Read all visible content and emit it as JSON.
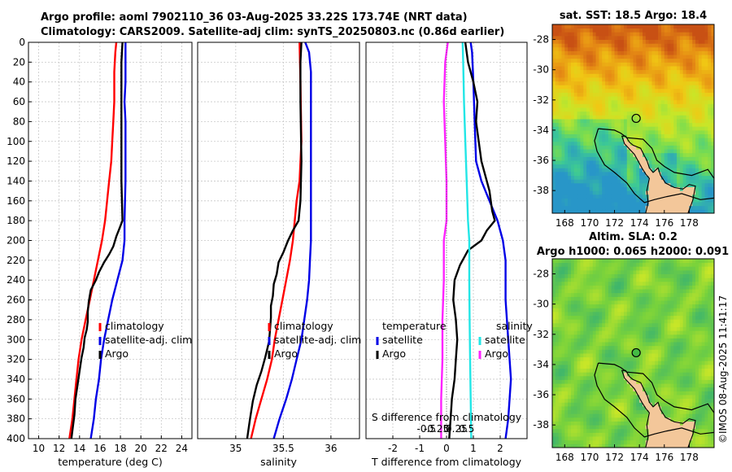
{
  "header": {
    "line1": "Argo profile: aoml 7902110_36 03-Aug-2025 33.22S 173.74E (NRT data)",
    "line2": "Climatology: CARS2009. Satellite-adj clim: synTS_20250803.nc (0.86d earlier)"
  },
  "watermark": "©IMOS 08-Aug-2025 11:41:17",
  "colors": {
    "red": "#ff0000",
    "blue": "#0000e6",
    "black": "#000000",
    "cyan": "#22e6e6",
    "magenta": "#ff22ff",
    "land": "#f3c79a",
    "coast": "#000000"
  },
  "chart_data": [
    {
      "type": "line",
      "id": "temperature",
      "xlabel": "temperature (deg C)",
      "ylabel": "",
      "xlim": [
        9,
        25
      ],
      "ylim": [
        400,
        0
      ],
      "xticks": [
        10,
        12,
        14,
        16,
        18,
        20,
        22,
        24
      ],
      "yticks": [
        0,
        20,
        40,
        60,
        80,
        100,
        120,
        140,
        160,
        180,
        200,
        220,
        240,
        260,
        280,
        300,
        320,
        340,
        360,
        380,
        400
      ],
      "legend": [
        "climatology",
        "satellite-adj. clim",
        "Argo"
      ],
      "series": [
        {
          "name": "climatology",
          "color": "red",
          "points": [
            [
              17.6,
              0
            ],
            [
              17.5,
              10
            ],
            [
              17.4,
              30
            ],
            [
              17.4,
              60
            ],
            [
              17.3,
              80
            ],
            [
              17.2,
              100
            ],
            [
              17.1,
              120
            ],
            [
              16.9,
              140
            ],
            [
              16.7,
              160
            ],
            [
              16.5,
              180
            ],
            [
              16.2,
              200
            ],
            [
              15.8,
              220
            ],
            [
              15.4,
              240
            ],
            [
              15.0,
              260
            ],
            [
              14.6,
              280
            ],
            [
              14.2,
              300
            ],
            [
              13.9,
              320
            ],
            [
              13.7,
              340
            ],
            [
              13.5,
              360
            ],
            [
              13.3,
              380
            ],
            [
              13.0,
              400
            ]
          ]
        },
        {
          "name": "satellite-adj. clim",
          "color": "blue",
          "points": [
            [
              18.5,
              0
            ],
            [
              18.5,
              40
            ],
            [
              18.4,
              60
            ],
            [
              18.5,
              80
            ],
            [
              18.5,
              140
            ],
            [
              18.4,
              180
            ],
            [
              18.4,
              200
            ],
            [
              18.2,
              220
            ],
            [
              17.7,
              240
            ],
            [
              17.2,
              260
            ],
            [
              16.8,
              280
            ],
            [
              16.4,
              300
            ],
            [
              16.1,
              320
            ],
            [
              15.9,
              340
            ],
            [
              15.6,
              360
            ],
            [
              15.4,
              380
            ],
            [
              15.1,
              400
            ]
          ]
        },
        {
          "name": "Argo",
          "color": "black",
          "points": [
            [
              18.2,
              0
            ],
            [
              18.1,
              20
            ],
            [
              18.1,
              60
            ],
            [
              18.1,
              100
            ],
            [
              18.1,
              140
            ],
            [
              18.2,
              180
            ],
            [
              17.9,
              188
            ],
            [
              17.6,
              196
            ],
            [
              17.3,
              206
            ],
            [
              16.9,
              214
            ],
            [
              16.4,
              222
            ],
            [
              15.9,
              232
            ],
            [
              15.6,
              240
            ],
            [
              15.1,
              250
            ],
            [
              14.9,
              262
            ],
            [
              14.8,
              272
            ],
            [
              14.8,
              282
            ],
            [
              14.7,
              290
            ],
            [
              14.5,
              298
            ],
            [
              14.4,
              308
            ],
            [
              14.2,
              318
            ],
            [
              14.0,
              332
            ],
            [
              13.8,
              346
            ],
            [
              13.6,
              360
            ],
            [
              13.5,
              376
            ],
            [
              13.3,
              392
            ],
            [
              13.2,
              400
            ]
          ]
        }
      ]
    },
    {
      "type": "line",
      "id": "salinity",
      "xlabel": "salinity",
      "xlim": [
        34.6,
        36.3
      ],
      "ylim": [
        400,
        0
      ],
      "xticks": [
        35,
        35.5,
        36
      ],
      "xticklabels": [
        "35",
        "35.5",
        "36"
      ],
      "legend": [
        "climatology",
        "satellite-adj. clim",
        "Argo"
      ],
      "series": [
        {
          "name": "climatology",
          "color": "red",
          "points": [
            [
              35.67,
              0
            ],
            [
              35.68,
              40
            ],
            [
              35.69,
              100
            ],
            [
              35.67,
              140
            ],
            [
              35.64,
              160
            ],
            [
              35.62,
              180
            ],
            [
              35.6,
              200
            ],
            [
              35.57,
              220
            ],
            [
              35.53,
              240
            ],
            [
              35.49,
              260
            ],
            [
              35.45,
              280
            ],
            [
              35.41,
              300
            ],
            [
              35.38,
              320
            ],
            [
              35.33,
              340
            ],
            [
              35.27,
              360
            ],
            [
              35.21,
              380
            ],
            [
              35.16,
              400
            ]
          ]
        },
        {
          "name": "satellite-adj. clim",
          "color": "blue",
          "points": [
            [
              35.73,
              0
            ],
            [
              35.77,
              10
            ],
            [
              35.79,
              30
            ],
            [
              35.79,
              60
            ],
            [
              35.79,
              100
            ],
            [
              35.79,
              120
            ],
            [
              35.79,
              160
            ],
            [
              35.79,
              200
            ],
            [
              35.78,
              220
            ],
            [
              35.77,
              240
            ],
            [
              35.75,
              260
            ],
            [
              35.72,
              280
            ],
            [
              35.69,
              300
            ],
            [
              35.64,
              320
            ],
            [
              35.59,
              340
            ],
            [
              35.53,
              360
            ],
            [
              35.46,
              380
            ],
            [
              35.4,
              400
            ]
          ]
        },
        {
          "name": "Argo",
          "color": "black",
          "points": [
            [
              35.69,
              0
            ],
            [
              35.68,
              20
            ],
            [
              35.68,
              60
            ],
            [
              35.69,
              120
            ],
            [
              35.68,
              160
            ],
            [
              35.66,
              180
            ],
            [
              35.6,
              190
            ],
            [
              35.55,
              200
            ],
            [
              35.5,
              212
            ],
            [
              35.45,
              222
            ],
            [
              35.43,
              234
            ],
            [
              35.4,
              244
            ],
            [
              35.39,
              256
            ],
            [
              35.37,
              266
            ],
            [
              35.37,
              278
            ],
            [
              35.36,
              290
            ],
            [
              35.35,
              302
            ],
            [
              35.31,
              318
            ],
            [
              35.27,
              332
            ],
            [
              35.22,
              346
            ],
            [
              35.18,
              362
            ],
            [
              35.15,
              380
            ],
            [
              35.12,
              400
            ]
          ]
        }
      ]
    },
    {
      "type": "line",
      "id": "differences",
      "xlabel": "T difference from climatology",
      "xlabel_top": "S difference from climatology",
      "xlim": [
        -3,
        3
      ],
      "ylim": [
        400,
        0
      ],
      "xticks": [
        -2,
        -1,
        0,
        1,
        2
      ],
      "xticks_top": [
        -0.5,
        -0.25,
        0,
        0.25,
        0.5
      ],
      "xticklabels_top": [
        "-0.5",
        "-0.25",
        "0",
        "0.25",
        "0.5"
      ],
      "legend_left_title": "temperature",
      "legend_right_title": "salinity",
      "legend_left": [
        "satellite",
        "Argo"
      ],
      "legend_right": [
        "satellite",
        "Argo"
      ],
      "series": [
        {
          "name": "T satellite",
          "color": "blue",
          "points": [
            [
              0.9,
              0
            ],
            [
              0.95,
              10
            ],
            [
              1.0,
              40
            ],
            [
              1.05,
              80
            ],
            [
              1.1,
              120
            ],
            [
              1.3,
              140
            ],
            [
              1.6,
              160
            ],
            [
              1.9,
              180
            ],
            [
              2.1,
              200
            ],
            [
              2.2,
              220
            ],
            [
              2.2,
              260
            ],
            [
              2.3,
              300
            ],
            [
              2.4,
              340
            ],
            [
              2.3,
              380
            ],
            [
              2.2,
              400
            ]
          ]
        },
        {
          "name": "T Argo",
          "color": "black",
          "points": [
            [
              0.7,
              0
            ],
            [
              0.8,
              20
            ],
            [
              1.0,
              40
            ],
            [
              1.15,
              60
            ],
            [
              1.1,
              80
            ],
            [
              1.2,
              100
            ],
            [
              1.3,
              120
            ],
            [
              1.6,
              150
            ],
            [
              1.7,
              170
            ],
            [
              1.8,
              180
            ],
            [
              1.5,
              190
            ],
            [
              1.3,
              200
            ],
            [
              0.8,
              210
            ],
            [
              0.5,
              225
            ],
            [
              0.3,
              240
            ],
            [
              0.25,
              260
            ],
            [
              0.35,
              280
            ],
            [
              0.4,
              300
            ],
            [
              0.35,
              320
            ],
            [
              0.3,
              340
            ],
            [
              0.2,
              360
            ],
            [
              0.15,
              380
            ],
            [
              0.1,
              400
            ]
          ]
        },
        {
          "name": "S satellite",
          "color": "cyan",
          "points": [
            [
              0.6,
              0
            ],
            [
              0.62,
              20
            ],
            [
              0.65,
              60
            ],
            [
              0.7,
              100
            ],
            [
              0.75,
              140
            ],
            [
              0.8,
              180
            ],
            [
              0.85,
              200
            ],
            [
              0.85,
              240
            ],
            [
              0.86,
              280
            ],
            [
              0.88,
              320
            ],
            [
              0.9,
              360
            ],
            [
              0.92,
              400
            ]
          ]
        },
        {
          "name": "S Argo",
          "color": "magenta",
          "points": [
            [
              0.05,
              0
            ],
            [
              -0.05,
              20
            ],
            [
              -0.1,
              60
            ],
            [
              -0.05,
              100
            ],
            [
              0.0,
              140
            ],
            [
              0.0,
              180
            ],
            [
              -0.1,
              200
            ],
            [
              -0.1,
              240
            ],
            [
              -0.15,
              280
            ],
            [
              -0.15,
              320
            ],
            [
              -0.2,
              360
            ],
            [
              -0.2,
              400
            ]
          ]
        }
      ]
    },
    {
      "type": "heatmap",
      "id": "sst-map",
      "title": "sat. SST: 18.5 Argo: 18.4",
      "xlim": [
        167,
        180
      ],
      "ylim": [
        -39.5,
        -27
      ],
      "xticks": [
        168,
        170,
        172,
        174,
        176,
        178
      ],
      "yticks": [
        -28,
        -30,
        -32,
        -34,
        -36,
        -38
      ],
      "marker": {
        "lon": 173.74,
        "lat": -33.22,
        "fill": "none"
      }
    },
    {
      "type": "heatmap",
      "id": "sla-map",
      "title": "Altim. SLA: 0.2",
      "subtitle": "Argo h1000: 0.065 h2000: 0.091",
      "xlim": [
        167,
        180
      ],
      "ylim": [
        -39.5,
        -27
      ],
      "xticks": [
        168,
        170,
        172,
        174,
        176,
        178
      ],
      "yticks": [
        -28,
        -30,
        -32,
        -34,
        -36,
        -38
      ],
      "marker": {
        "lon": 173.74,
        "lat": -33.22,
        "fill": "#44bb44"
      }
    }
  ]
}
